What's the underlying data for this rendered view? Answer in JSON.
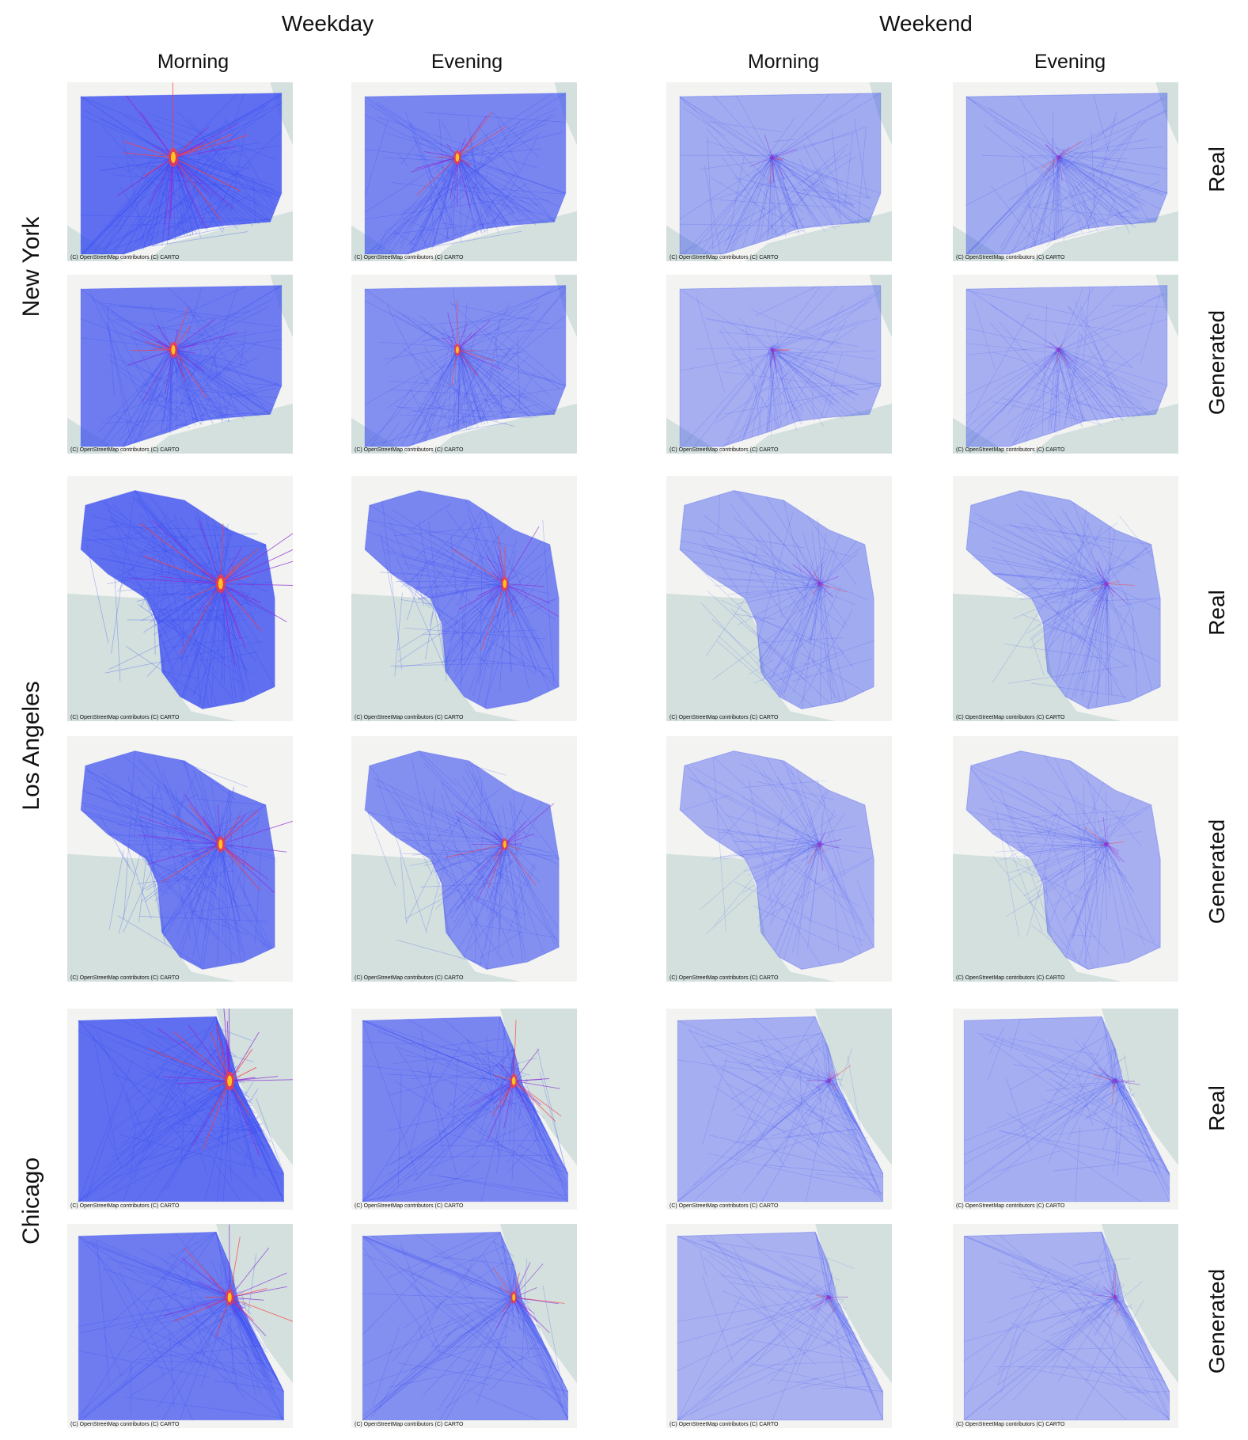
{
  "headers": {
    "groups": [
      "Weekday",
      "Weekend"
    ],
    "columns": [
      "Morning",
      "Evening",
      "Morning",
      "Evening"
    ]
  },
  "rows": {
    "types": [
      "Real",
      "Generated",
      "Real",
      "Generated",
      "Real",
      "Generated"
    ],
    "cities": [
      "New York",
      "Los Angeles",
      "Chicago"
    ]
  },
  "attribution": "(C) OpenStreetMap contributors (C) CARTO",
  "colors": {
    "land": "#f3f4f1",
    "water": "#d3e0de",
    "flow_low": "#3a4df0",
    "flow_mid": "#8b2bd6",
    "flow_high": "#ff3a3a",
    "flow_peak": "#ffd21e"
  }
}
